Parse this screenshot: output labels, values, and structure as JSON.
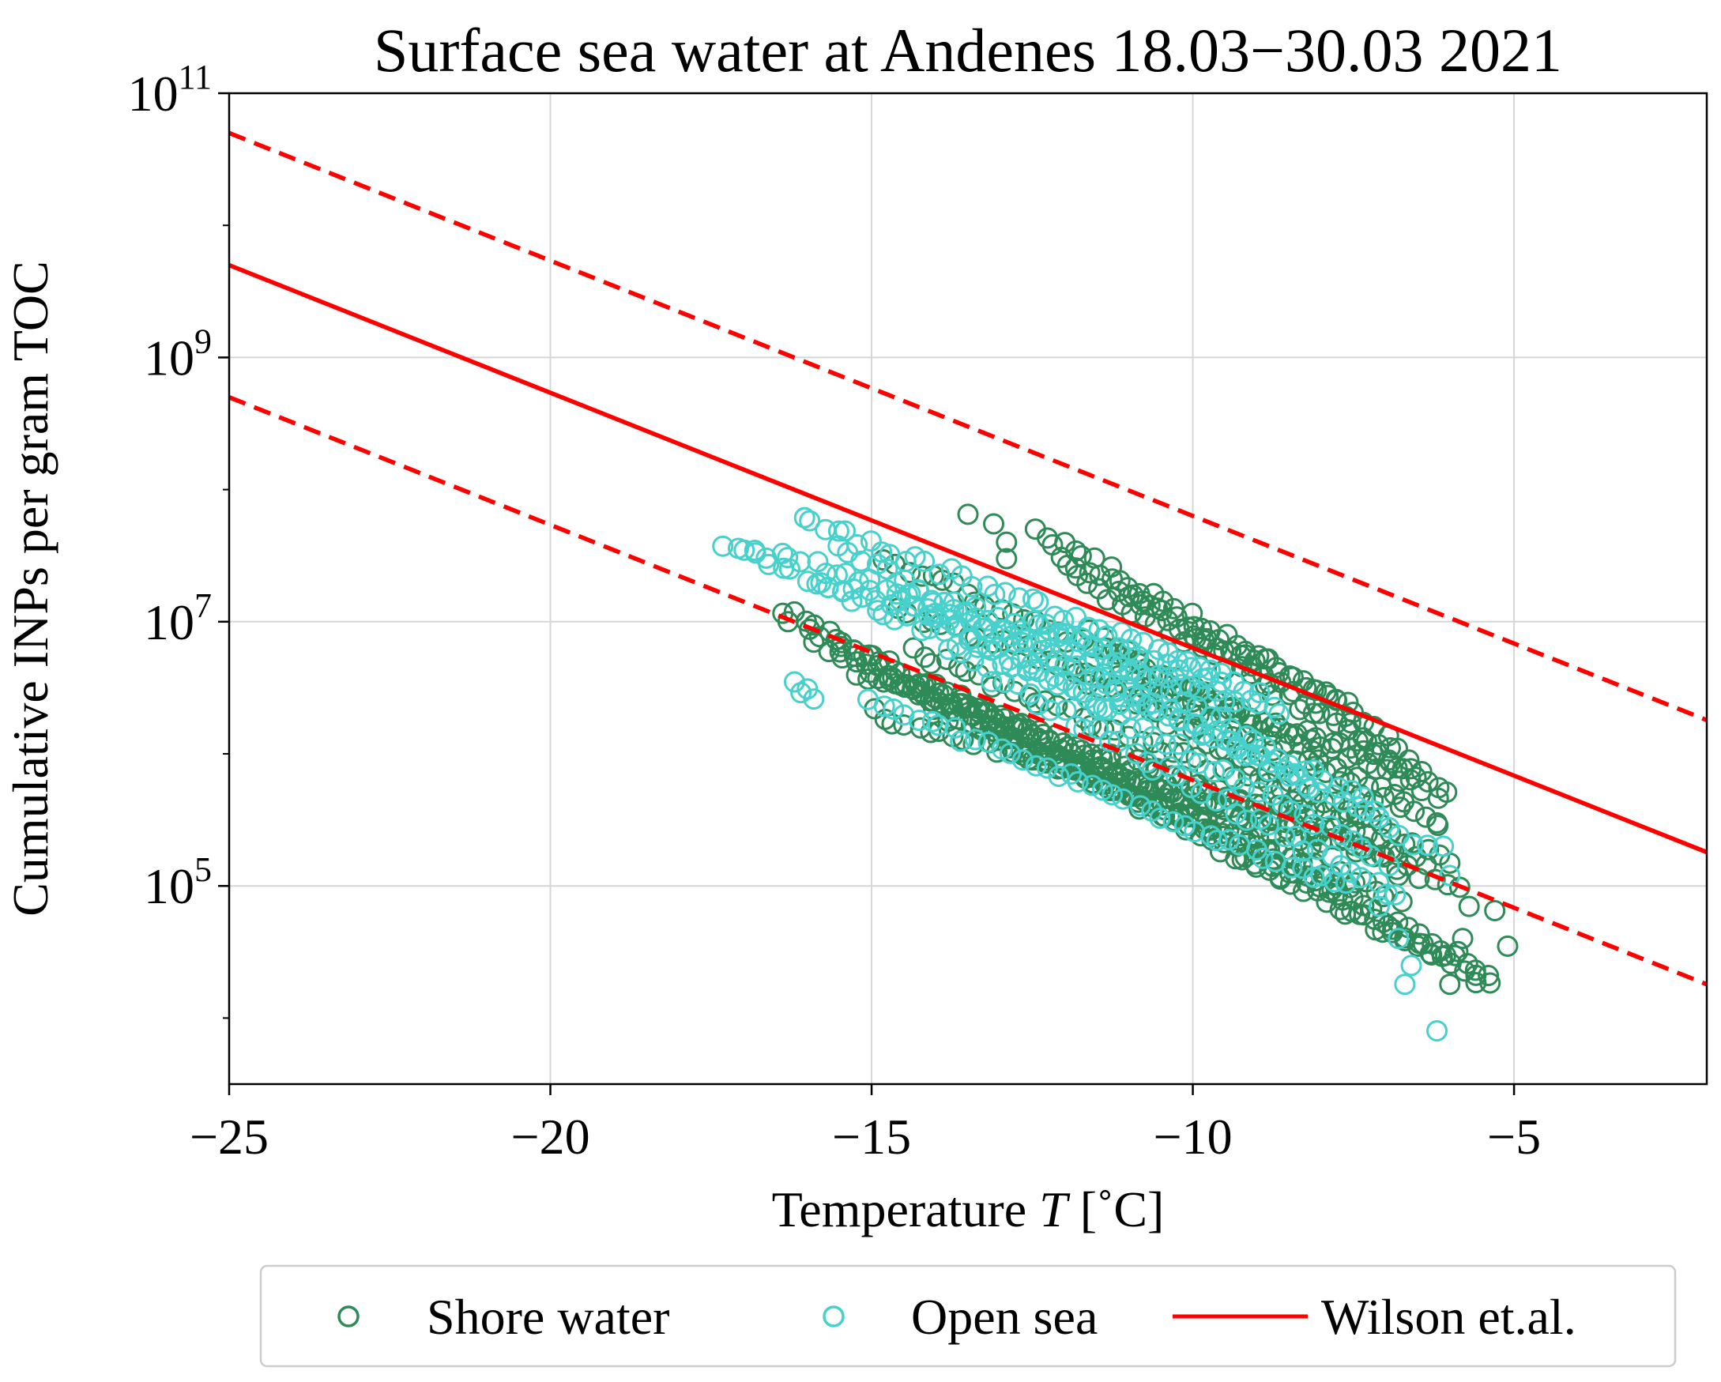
{
  "chart_data": {
    "type": "scatter",
    "title": "Surface sea water at Andenes 18.03−30.03 2021",
    "xlabel": "Temperature T [˚C]",
    "xlabel_parts": [
      "Temperature ",
      "T",
      " [˚C]"
    ],
    "ylabel": "Cumulative INPs per gram TOC",
    "xlim": [
      -25,
      -2
    ],
    "ylim_log10": [
      3.5,
      11
    ],
    "yscale": "log",
    "grid": true,
    "x_ticks": [
      -25,
      -20,
      -15,
      -10,
      -5
    ],
    "x_tick_labels": [
      "−25",
      "−20",
      "−15",
      "−10",
      "−5"
    ],
    "y_ticks_exponent": [
      5,
      7,
      9,
      11
    ],
    "y_tick_base": "10",
    "legend": {
      "placement": "below-center",
      "entries": [
        {
          "label": "Shore water",
          "marker": "open-circle",
          "color": "#2e8b57"
        },
        {
          "label": "Open sea",
          "marker": "open-circle",
          "color": "#48d1cc"
        },
        {
          "label": "Wilson et.al.",
          "marker": "line",
          "color": "#ff0000"
        }
      ]
    },
    "series": [
      {
        "name": "Shore water",
        "marker": "open-circle",
        "color": "#2e8b57",
        "strands": [
          [
            -16.4,
            12000000.0,
            -5.9,
            30000.0
          ],
          [
            -16.0,
            8000000.0,
            -5.6,
            20000.0
          ],
          [
            -15.6,
            7000000.0,
            -5.4,
            20000.0
          ],
          [
            -15.4,
            5000000.0,
            -5.9,
            100000.0
          ],
          [
            -15.2,
            4000000.0,
            -6.9,
            200000.0
          ],
          [
            -15.0,
            2000000.0,
            -6.4,
            150000.0
          ],
          [
            -14.8,
            30000000.0,
            -6.2,
            500000.0
          ],
          [
            -14.6,
            12000000.0,
            -6.6,
            800000.0
          ],
          [
            -14.4,
            6000000.0,
            -7.4,
            300000.0
          ],
          [
            -14.2,
            3500000.0,
            -7.6,
            100000.0
          ],
          [
            -14.0,
            2000000.0,
            -8.0,
            200000.0
          ],
          [
            -13.0,
            1200000.0,
            -6.8,
            80000.0
          ],
          [
            -12.4,
            50000000.0,
            -7.0,
            1500000.0
          ],
          [
            -12.2,
            35000000.0,
            -6.4,
            800000.0
          ],
          [
            -12.0,
            25000000.0,
            -6.0,
            500000.0
          ],
          [
            -11.8,
            4000000.0,
            -6.0,
            150000.0
          ],
          [
            -11.6,
            8000000.0,
            -6.2,
            300000.0
          ],
          [
            -11.0,
            15000000.0,
            -7.6,
            2500000.0
          ],
          [
            -10.8,
            3000000.0,
            -6.8,
            400000.0
          ]
        ],
        "extra_points": [
          [
            -13.5,
            65000000.0
          ],
          [
            -13.1,
            55000000.0
          ],
          [
            -12.9,
            40000000.0
          ],
          [
            -12.9,
            30000000.0
          ],
          [
            -16.3,
            10000000.0
          ],
          [
            -15.9,
            7000000.0
          ],
          [
            -5.8,
            40000.0
          ],
          [
            -5.1,
            35000.0
          ],
          [
            -5.4,
            21000.0
          ],
          [
            -5.6,
            23000.0
          ],
          [
            -6.0,
            18000.0
          ],
          [
            -6.5,
            35000.0
          ],
          [
            -5.7,
            70000.0
          ],
          [
            -5.3,
            65000.0
          ],
          [
            -6.8,
            120000.0
          ],
          [
            -6.2,
            300000.0
          ]
        ]
      },
      {
        "name": "Open sea",
        "marker": "open-circle",
        "color": "#48d1cc",
        "strands": [
          [
            -17.3,
            40000000.0,
            -11.0,
            2000000.0
          ],
          [
            -16.8,
            35000000.0,
            -9.0,
            3000000.0
          ],
          [
            -16.1,
            60000000.0,
            -9.5,
            4000000.0
          ],
          [
            -15.8,
            20000000.0,
            -8.6,
            2000000.0
          ],
          [
            -15.5,
            35000000.0,
            -8.2,
            600000.0
          ],
          [
            -15.0,
            2500000.0,
            -7.6,
            100000.0
          ],
          [
            -14.5,
            15000000.0,
            -7.0,
            150000.0
          ],
          [
            -13.8,
            6000000.0,
            -6.8,
            80000.0
          ],
          [
            -12.5,
            11000000.0,
            -7.2,
            400000.0
          ],
          [
            -11.5,
            4000000.0,
            -6.4,
            200000.0
          ]
        ],
        "extra_points": [
          [
            -16.2,
            3500000.0
          ],
          [
            -16.1,
            2900000.0
          ],
          [
            -15.9,
            2600000.0
          ],
          [
            -16.0,
            3100000.0
          ],
          [
            -6.2,
            8000.0
          ],
          [
            -6.7,
            18000.0
          ],
          [
            -6.6,
            25000.0
          ],
          [
            -6.8,
            40000.0
          ],
          [
            -7.1,
            70000.0
          ],
          [
            -6.0,
            120000.0
          ],
          [
            -6.1,
            200000.0
          ]
        ]
      },
      {
        "name": "Wilson et.al.",
        "type": "line",
        "color": "#ff0000",
        "style": "solid",
        "x": [
          -25,
          -2
        ],
        "y": [
          5000000000.0,
          180000.0
        ]
      },
      {
        "type": "line",
        "color": "#ff0000",
        "style": "dashed",
        "x": [
          -25,
          -2
        ],
        "y": [
          50000000000.0,
          1800000.0
        ]
      },
      {
        "type": "line",
        "color": "#ff0000",
        "style": "dashed",
        "x": [
          -25,
          -2
        ],
        "y": [
          500000000.0,
          18000.0
        ]
      }
    ]
  }
}
